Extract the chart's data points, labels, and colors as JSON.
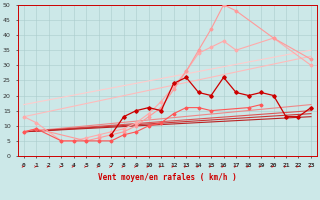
{
  "xlabel": "Vent moyen/en rafales ( km/h )",
  "background_color": "#cce8e8",
  "grid_color": "#aacccc",
  "ylim": [
    0,
    50
  ],
  "xlim": [
    -0.5,
    23.5
  ],
  "yticks": [
    0,
    5,
    10,
    15,
    20,
    25,
    30,
    35,
    40,
    45,
    50
  ],
  "xticks": [
    0,
    1,
    2,
    3,
    4,
    5,
    6,
    7,
    8,
    9,
    10,
    11,
    12,
    13,
    14,
    15,
    16,
    17,
    18,
    19,
    20,
    21,
    22,
    23
  ],
  "straight_lines": [
    {
      "color": "#ffcccc",
      "lw": 0.8,
      "x0": 0,
      "y0": 17,
      "x1": 23,
      "y1": 35
    },
    {
      "color": "#ffbbbb",
      "lw": 0.8,
      "x0": 0,
      "y0": 13,
      "x1": 23,
      "y1": 33
    },
    {
      "color": "#ee8888",
      "lw": 0.8,
      "x0": 0,
      "y0": 8,
      "x1": 23,
      "y1": 17
    },
    {
      "color": "#dd5555",
      "lw": 0.8,
      "x0": 0,
      "y0": 8,
      "x1": 23,
      "y1": 15
    },
    {
      "color": "#cc3333",
      "lw": 0.8,
      "x0": 0,
      "y0": 8,
      "x1": 23,
      "y1": 14
    },
    {
      "color": "#bb2222",
      "lw": 0.8,
      "x0": 0,
      "y0": 8,
      "x1": 23,
      "y1": 13
    }
  ],
  "curve_lines": [
    {
      "color": "#ffaaaa",
      "lw": 0.8,
      "marker": "D",
      "ms": 1.5,
      "x": [
        0,
        1,
        3,
        4,
        5,
        6,
        7,
        8,
        9,
        10,
        11,
        12,
        13,
        14,
        15,
        16,
        17,
        20,
        23
      ],
      "y": [
        13,
        11,
        5,
        5,
        6,
        7,
        8,
        9,
        11,
        14,
        18,
        23,
        28,
        34,
        36,
        38,
        35,
        39,
        30
      ]
    },
    {
      "color": "#ff9999",
      "lw": 0.8,
      "marker": "D",
      "ms": 1.5,
      "x": [
        0,
        1,
        5,
        6,
        7,
        8,
        9,
        10,
        11,
        12,
        13,
        14,
        15,
        16,
        17,
        20,
        23
      ],
      "y": [
        8,
        9,
        5,
        6,
        7,
        8,
        10,
        13,
        16,
        22,
        28,
        35,
        42,
        50,
        48,
        39,
        32
      ]
    },
    {
      "color": "#cc0000",
      "lw": 0.9,
      "marker": "D",
      "ms": 1.8,
      "x": [
        7,
        8,
        9,
        10,
        11,
        12,
        13,
        14,
        15,
        16,
        17,
        18,
        19,
        20,
        21,
        22,
        23
      ],
      "y": [
        7,
        13,
        15,
        16,
        15,
        24,
        26,
        21,
        20,
        26,
        21,
        20,
        21,
        20,
        13,
        13,
        16
      ]
    },
    {
      "color": "#ff5555",
      "lw": 0.8,
      "marker": "D",
      "ms": 1.5,
      "x": [
        0,
        1,
        3,
        4,
        5,
        6,
        7,
        8,
        9,
        10,
        11,
        12,
        13,
        14,
        15,
        18,
        19
      ],
      "y": [
        8,
        9,
        5,
        5,
        5,
        5,
        5,
        7,
        8,
        10,
        11,
        14,
        16,
        16,
        15,
        16,
        17
      ]
    }
  ]
}
